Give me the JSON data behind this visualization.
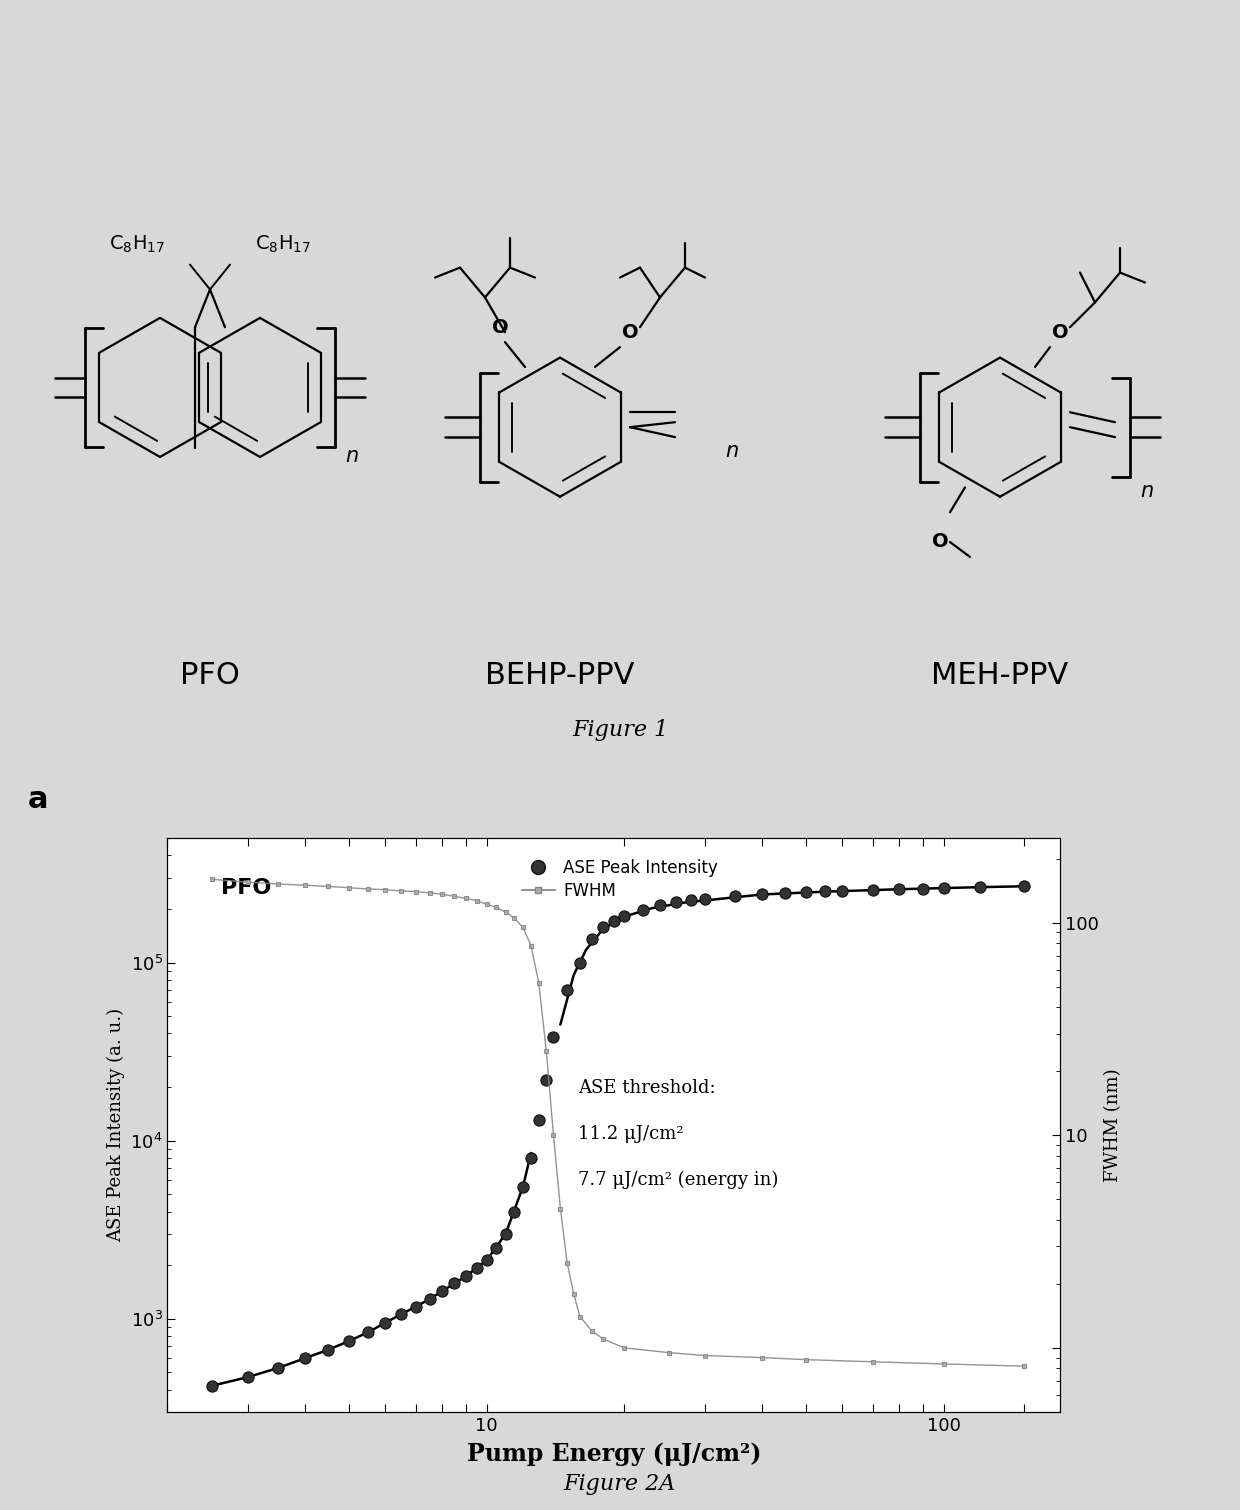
{
  "title_top": "Figure 1",
  "title_bottom": "Figure 2A",
  "panel_label": "a",
  "pfo_label": "PFO",
  "behp_label": "BEHP-PPV",
  "meh_label": "MEH-PPV",
  "plot_title_bold": "PFO",
  "xlabel": "Pump Energy (μJ/cm²)",
  "ylabel_left": "ASE Peak Intensity (a. u.)",
  "ylabel_right": "FWHM (nm)",
  "legend_dot": "ASE Peak Intensity",
  "legend_fwhm": "FWHM",
  "annotation_line1": "ASE threshold:",
  "annotation_line2": "11.2 μJ/cm²",
  "annotation_line3": "7.7 μJ/cm² (energy in)",
  "bg_top": "#ffffff",
  "bg_fig": "#d8d8d8",
  "bg_plot": "#ffffff",
  "ase_x": [
    2.5,
    3.0,
    3.5,
    4.0,
    4.5,
    5.0,
    5.5,
    6.0,
    6.5,
    7.0,
    7.5,
    8.0,
    8.5,
    9.0,
    9.5,
    10.0,
    10.5,
    11.0,
    11.5,
    12.0,
    12.5,
    13.0,
    13.5,
    14.0,
    15.0,
    16.0,
    17.0,
    18.0,
    19.0,
    20.0,
    22.0,
    24.0,
    26.0,
    28.0,
    30.0,
    35.0,
    40.0,
    45.0,
    50.0,
    55.0,
    60.0,
    70.0,
    80.0,
    90.0,
    100.0,
    120.0,
    150.0
  ],
  "ase_y": [
    420,
    470,
    530,
    600,
    670,
    750,
    840,
    950,
    1060,
    1170,
    1290,
    1430,
    1580,
    1730,
    1930,
    2130,
    2500,
    3000,
    4000,
    5500,
    8000,
    13000,
    22000,
    38000,
    70000,
    100000,
    135000,
    158000,
    172000,
    182000,
    198000,
    210000,
    218000,
    224000,
    228000,
    237000,
    242000,
    246000,
    249000,
    251000,
    253000,
    256000,
    258000,
    260000,
    262000,
    265000,
    268000
  ],
  "fwhm_x": [
    2.5,
    3.0,
    3.5,
    4.0,
    4.5,
    5.0,
    5.5,
    6.0,
    6.5,
    7.0,
    7.5,
    8.0,
    8.5,
    9.0,
    9.5,
    10.0,
    10.5,
    11.0,
    11.5,
    12.0,
    12.5,
    13.0,
    13.5,
    14.0,
    14.5,
    15.0,
    15.5,
    16.0,
    17.0,
    18.0,
    20.0,
    25.0,
    30.0,
    40.0,
    50.0,
    70.0,
    100.0,
    150.0
  ],
  "fwhm_nm": [
    160,
    155,
    152,
    150,
    148,
    146,
    144,
    143,
    141,
    140,
    138,
    136,
    133,
    130,
    127,
    122,
    118,
    112,
    105,
    95,
    78,
    52,
    25,
    10,
    4.5,
    2.5,
    1.8,
    1.4,
    1.2,
    1.1,
    1.0,
    0.95,
    0.92,
    0.9,
    0.88,
    0.86,
    0.84,
    0.82
  ],
  "fit_x_lo": [
    2.5,
    3.0,
    3.5,
    4.0,
    4.5,
    5.0,
    5.5,
    6.0,
    6.5,
    7.0,
    7.5,
    8.0,
    8.5,
    9.0,
    9.5,
    10.0,
    11.0,
    12.0,
    12.5
  ],
  "fit_y_lo": [
    420,
    470,
    530,
    600,
    670,
    750,
    840,
    950,
    1060,
    1170,
    1290,
    1430,
    1580,
    1730,
    1930,
    2130,
    3000,
    5500,
    8500
  ],
  "fit_x_hi": [
    14.5,
    15.5,
    16.5,
    18.0,
    20.0,
    23.0,
    27.0,
    32.0,
    40.0,
    55.0,
    80.0,
    120.0,
    150.0
  ],
  "fit_y_hi": [
    45000,
    85000,
    118000,
    155000,
    181000,
    202000,
    217000,
    227000,
    241000,
    250000,
    258000,
    265000,
    268000
  ]
}
